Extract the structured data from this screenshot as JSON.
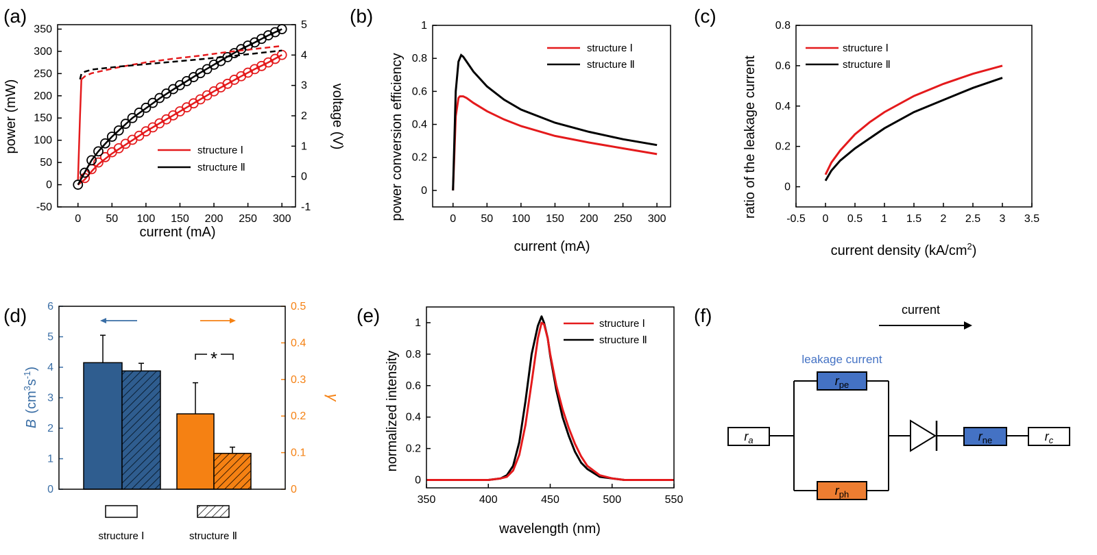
{
  "chart_data": [
    {
      "panel": "(a)",
      "type": "line",
      "xlabel": "current (mA)",
      "ylabel": "power (mW)",
      "y2label": "voltage (V)",
      "xlim": [
        -30,
        320
      ],
      "ylim": [
        -50,
        360
      ],
      "y2lim": [
        -1,
        5
      ],
      "xticks": [
        "0",
        "50",
        "100",
        "150",
        "200",
        "250",
        "300"
      ],
      "yticks": [
        "-50",
        "0",
        "50",
        "100",
        "150",
        "200",
        "250",
        "300",
        "350"
      ],
      "y2ticks": [
        "-1",
        "0",
        "1",
        "2",
        "3",
        "4",
        "5"
      ],
      "legend": {
        "placement": "bottom-right",
        "entries": [
          "structure Ⅰ",
          "structure Ⅱ"
        ]
      },
      "colors": {
        "structure Ⅰ": "#e41a1c",
        "structure Ⅱ": "#000000"
      },
      "series": [
        {
          "name": "structure Ⅰ",
          "kind": "power-fit",
          "axis": "left",
          "x": [
            0,
            10,
            20,
            30,
            40,
            50,
            60,
            80,
            100,
            120,
            140,
            160,
            180,
            200,
            220,
            240,
            260,
            280,
            300
          ],
          "y": [
            0,
            12,
            30,
            46,
            58,
            70,
            80,
            100,
            120,
            138,
            156,
            174,
            192,
            210,
            227,
            244,
            260,
            275,
            292
          ]
        },
        {
          "name": "structure Ⅰ",
          "kind": "power-measured",
          "axis": "left",
          "x": [
            10,
            20,
            30,
            40,
            50,
            60,
            70,
            80,
            90,
            100,
            110,
            120,
            130,
            140,
            150,
            160,
            170,
            180,
            190,
            200,
            210,
            220,
            230,
            240,
            250,
            260,
            270,
            280,
            290,
            300
          ],
          "y": [
            15,
            35,
            50,
            62,
            73,
            82,
            92,
            101,
            110,
            120,
            129,
            138,
            147,
            156,
            165,
            174,
            183,
            192,
            201,
            210,
            219,
            227,
            236,
            244,
            252,
            260,
            267,
            275,
            283,
            292
          ]
        },
        {
          "name": "structure Ⅱ",
          "kind": "power-fit",
          "axis": "left",
          "x": [
            0,
            10,
            20,
            30,
            40,
            50,
            60,
            80,
            100,
            120,
            140,
            160,
            180,
            200,
            220,
            240,
            260,
            280,
            300
          ],
          "y": [
            0,
            28,
            55,
            75,
            92,
            108,
            122,
            150,
            172,
            194,
            214,
            233,
            252,
            270,
            288,
            305,
            320,
            336,
            350
          ]
        },
        {
          "name": "structure Ⅱ",
          "kind": "power-measured",
          "axis": "left",
          "x": [
            0,
            10,
            20,
            30,
            40,
            50,
            60,
            70,
            80,
            90,
            100,
            110,
            120,
            130,
            140,
            150,
            160,
            170,
            180,
            190,
            200,
            210,
            220,
            230,
            240,
            250,
            260,
            270,
            280,
            290,
            300
          ],
          "y": [
            0,
            27,
            55,
            75,
            93,
            108,
            122,
            137,
            150,
            162,
            173,
            184,
            195,
            205,
            215,
            224,
            233,
            242,
            251,
            260,
            270,
            278,
            287,
            296,
            305,
            313,
            320,
            328,
            336,
            343,
            350
          ]
        },
        {
          "name": "structure Ⅰ",
          "kind": "voltage",
          "axis": "right",
          "x": [
            0,
            3,
            5,
            10,
            20,
            40,
            60,
            80,
            100,
            140,
            180,
            220,
            260,
            300
          ],
          "y": [
            -0.1,
            2.0,
            3.2,
            3.3,
            3.4,
            3.5,
            3.6,
            3.68,
            3.76,
            3.88,
            3.98,
            4.1,
            4.2,
            4.3
          ]
        },
        {
          "name": "structure Ⅱ",
          "kind": "voltage",
          "axis": "right",
          "x": [
            3,
            5,
            10,
            20,
            40,
            60,
            80,
            100,
            140,
            180,
            220,
            260,
            300
          ],
          "y": [
            3.2,
            3.38,
            3.45,
            3.52,
            3.57,
            3.62,
            3.66,
            3.7,
            3.78,
            3.86,
            3.95,
            4.05,
            4.15
          ]
        }
      ]
    },
    {
      "panel": "(b)",
      "type": "line",
      "xlabel": "current (mA)",
      "ylabel": "power conversion efficiency",
      "xlim": [
        -30,
        320
      ],
      "ylim": [
        -0.1,
        1.0
      ],
      "xticks": [
        "0",
        "50",
        "100",
        "150",
        "200",
        "250",
        "300"
      ],
      "yticks": [
        "0",
        "0.2",
        "0.4",
        "0.6",
        "0.8",
        "1"
      ],
      "legend": {
        "placement": "top-right",
        "entries": [
          "structure Ⅰ",
          "structure Ⅱ"
        ]
      },
      "series": [
        {
          "name": "structure Ⅰ",
          "x": [
            0,
            4,
            8,
            10,
            15,
            20,
            30,
            50,
            75,
            100,
            150,
            200,
            250,
            300
          ],
          "y": [
            0.0,
            0.45,
            0.56,
            0.57,
            0.57,
            0.56,
            0.53,
            0.48,
            0.43,
            0.39,
            0.33,
            0.29,
            0.255,
            0.22
          ]
        },
        {
          "name": "structure Ⅱ",
          "x": [
            0,
            4,
            8,
            12,
            15,
            20,
            30,
            50,
            75,
            100,
            150,
            200,
            250,
            300
          ],
          "y": [
            0.0,
            0.6,
            0.78,
            0.82,
            0.81,
            0.78,
            0.72,
            0.63,
            0.55,
            0.49,
            0.41,
            0.355,
            0.31,
            0.275
          ]
        }
      ]
    },
    {
      "panel": "(c)",
      "type": "line",
      "xlabel": "current density (kA/cm",
      "xlabel_sup": "2",
      "xlabel_tail": ")",
      "ylabel": "ratio of the leakage current",
      "xlim": [
        -0.5,
        3.5
      ],
      "ylim": [
        -0.1,
        0.8
      ],
      "xticks": [
        "-0.5",
        "0",
        "0.5",
        "1",
        "1.5",
        "2",
        "2.5",
        "3",
        "3.5"
      ],
      "yticks": [
        "0",
        "0.2",
        "0.4",
        "0.6",
        "0.8"
      ],
      "legend": {
        "placement": "top-left",
        "entries": [
          "structure Ⅰ",
          "structure Ⅱ"
        ]
      },
      "series": [
        {
          "name": "structure Ⅰ",
          "x": [
            0,
            0.1,
            0.25,
            0.5,
            0.75,
            1,
            1.5,
            2,
            2.5,
            3
          ],
          "y": [
            0.06,
            0.12,
            0.18,
            0.26,
            0.32,
            0.37,
            0.45,
            0.51,
            0.56,
            0.6
          ]
        },
        {
          "name": "structure Ⅱ",
          "x": [
            0,
            0.1,
            0.25,
            0.5,
            0.75,
            1,
            1.5,
            2,
            2.5,
            3
          ],
          "y": [
            0.03,
            0.08,
            0.13,
            0.19,
            0.24,
            0.29,
            0.37,
            0.43,
            0.49,
            0.54
          ]
        }
      ]
    },
    {
      "panel": "(d)",
      "type": "bar",
      "ylabel": "B",
      "ylabel_units": "(cm",
      "ylabel_sup1": "3",
      "ylabel_mid": "s",
      "ylabel_sup2": "-1",
      "ylabel_tail": ")",
      "y2label": "γ",
      "ylim": [
        0,
        6
      ],
      "y2lim": [
        0,
        0.5
      ],
      "yticks": [
        "0",
        "1",
        "2",
        "3",
        "4",
        "5",
        "6"
      ],
      "y2ticks": [
        "0",
        "0.1",
        "0.2",
        "0.3",
        "0.4",
        "0.5"
      ],
      "colors": {
        "B": "#2f5d8f",
        "gamma": "#f58113",
        "left_axis": "#3a6ea5",
        "right_axis": "#f58113"
      },
      "bars": [
        {
          "quantity": "B",
          "structure": "structure Ⅰ",
          "value": 4.15,
          "error": 0.9
        },
        {
          "quantity": "B",
          "structure": "structure Ⅱ",
          "value": 3.88,
          "error": 0.25
        },
        {
          "quantity": "γ",
          "structure": "structure Ⅰ",
          "value": 0.206,
          "error": 0.085
        },
        {
          "quantity": "γ",
          "structure": "structure Ⅱ",
          "value": 0.098,
          "error": 0.017
        }
      ],
      "significance": "*",
      "legend_labels": [
        "structure Ⅰ",
        "structure Ⅱ"
      ]
    },
    {
      "panel": "(e)",
      "type": "line",
      "xlabel": "wavelength (nm)",
      "ylabel": "normalized intensity",
      "xlim": [
        350,
        550
      ],
      "ylim": [
        -0.05,
        1.1
      ],
      "xticks": [
        "350",
        "400",
        "450",
        "500",
        "550"
      ],
      "yticks": [
        "0",
        "0.2",
        "0.4",
        "0.6",
        "0.8",
        "1"
      ],
      "legend": {
        "placement": "top-right",
        "entries": [
          "structure Ⅰ",
          "structure Ⅱ"
        ]
      },
      "series": [
        {
          "name": "structure Ⅰ",
          "x": [
            350,
            400,
            410,
            415,
            420,
            425,
            430,
            435,
            440,
            443,
            445,
            448,
            450,
            455,
            460,
            465,
            470,
            475,
            480,
            490,
            500,
            510,
            550
          ],
          "y": [
            0,
            0,
            0.01,
            0.02,
            0.06,
            0.16,
            0.35,
            0.62,
            0.9,
            1.0,
            0.99,
            0.9,
            0.8,
            0.6,
            0.45,
            0.33,
            0.23,
            0.15,
            0.09,
            0.03,
            0.01,
            0,
            0
          ]
        },
        {
          "name": "structure Ⅱ",
          "x": [
            350,
            400,
            410,
            415,
            420,
            425,
            430,
            435,
            440,
            443,
            445,
            448,
            450,
            455,
            460,
            465,
            470,
            475,
            480,
            490,
            500,
            510,
            550
          ],
          "y": [
            0,
            0,
            0.01,
            0.03,
            0.09,
            0.24,
            0.5,
            0.8,
            0.98,
            1.04,
            1.0,
            0.9,
            0.79,
            0.57,
            0.4,
            0.28,
            0.18,
            0.11,
            0.07,
            0.02,
            0.01,
            0,
            0
          ]
        }
      ]
    },
    {
      "panel": "(f)",
      "type": "diagram",
      "current_label": "current",
      "leakage_label": "leakage current",
      "elements": [
        "r_a",
        "r_pe",
        "r_ph",
        "r_ne",
        "r_c"
      ],
      "colors": {
        "blue_box": "#4472c4",
        "orange_box": "#ed7d31",
        "leakage_text": "#4472c4"
      }
    }
  ],
  "panels": {
    "a": {
      "label": "(a)"
    },
    "b": {
      "label": "(b)"
    },
    "c": {
      "label": "(c)"
    },
    "d": {
      "label": "(d)"
    },
    "e": {
      "label": "(e)"
    },
    "f": {
      "label": "(f)",
      "current": "current",
      "leakage": "leakage current",
      "ra_main": "r",
      "ra_sub": "a",
      "rpe_main": "r",
      "rpe_sub": "pe",
      "rph_main": "r",
      "rph_sub": "ph",
      "rne_main": "r",
      "rne_sub": "ne",
      "rc_main": "r",
      "rc_sub": "c"
    }
  }
}
